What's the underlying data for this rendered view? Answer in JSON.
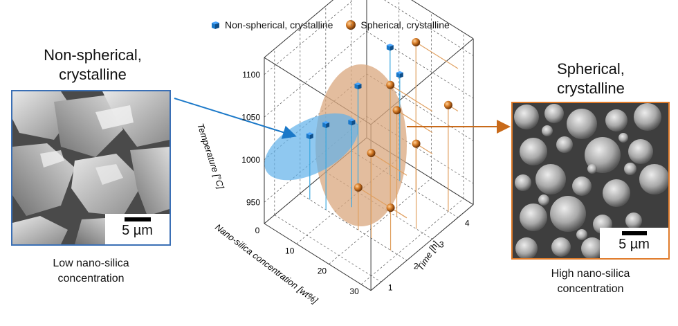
{
  "legend": {
    "items": [
      {
        "label": "Non-spherical, crystalline",
        "color": "#1a78c8",
        "marker": "cube"
      },
      {
        "label": "Spherical, crystalline",
        "color": "#c86a1a",
        "marker": "sphere"
      }
    ]
  },
  "left_panel": {
    "title_line1": "Non-spherical,",
    "title_line2": "crystalline",
    "scale": "5 µm",
    "caption_line1": "Low nano-silica",
    "caption_line2": "concentration",
    "border_color": "#3a6fb5"
  },
  "right_panel": {
    "title_line1": "Spherical,",
    "title_line2": "crystalline",
    "scale": "5 µm",
    "caption_line1": "High nano-silica",
    "caption_line2": "concentration",
    "border_color": "#e07b2a"
  },
  "chart_data": {
    "type": "scatter3d",
    "z_label": "Temperature [°C]",
    "x_label": "Nano-silica concentration [wt%]",
    "y_label": "Time [h]",
    "z_ticks": [
      "950",
      "1000",
      "1050",
      "1100"
    ],
    "x_ticks": [
      "0",
      "10",
      "20",
      "30"
    ],
    "y_ticks": [
      "1",
      "2",
      "3",
      "4"
    ],
    "series": [
      {
        "name": "Non-spherical, crystalline",
        "color": "#1a78c8",
        "points": [
          [
            3,
            2,
            1000
          ],
          [
            8,
            2,
            1025
          ],
          [
            12,
            2.5,
            1025
          ],
          [
            10,
            3,
            1050
          ],
          [
            12,
            4,
            1075
          ],
          [
            15,
            4,
            1050
          ]
        ]
      },
      {
        "name": "Spherical, crystalline",
        "color": "#c86a1a",
        "points": [
          [
            20,
            4,
            1100
          ],
          [
            20,
            3,
            1075
          ],
          [
            22,
            3,
            1050
          ],
          [
            22,
            2,
            1025
          ],
          [
            18,
            2,
            975
          ],
          [
            28,
            3,
            1025
          ],
          [
            28,
            2,
            975
          ],
          [
            30,
            4,
            1050
          ]
        ]
      }
    ]
  }
}
